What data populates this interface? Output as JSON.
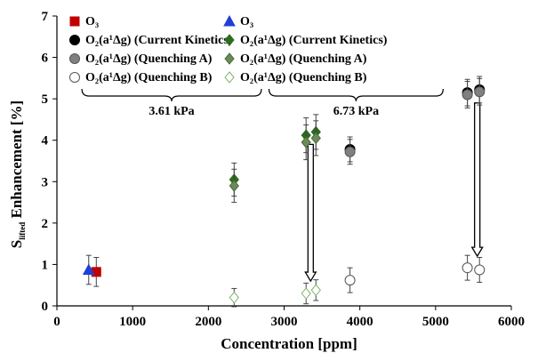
{
  "chart_data": {
    "type": "scatter",
    "xlabel": "Concentration [ppm]",
    "ylabel": {
      "prefix": "S",
      "sub": "lifted",
      "suffix": " Enhancement [%]"
    },
    "xlim": [
      0,
      6000
    ],
    "ylim": [
      0,
      7
    ],
    "x_ticks": [
      0,
      1000,
      2000,
      3000,
      4000,
      5000,
      6000
    ],
    "y_ticks": [
      0,
      1,
      2,
      3,
      4,
      5,
      6,
      7
    ],
    "grid": false,
    "legend_placement": "top-left, two columns",
    "annotations": [
      {
        "text": "3.61 kPa",
        "bracket_x": [
          330,
          2700
        ]
      },
      {
        "text": "6.73 kPa",
        "bracket_x": [
          2800,
          5100
        ]
      }
    ],
    "arrows": [
      {
        "x": 3350,
        "y_from": 3.9,
        "y_to": 0.6
      },
      {
        "x": 5550,
        "y_from": 4.9,
        "y_to": 1.2
      }
    ],
    "legend_columns": [
      [
        {
          "series": 0,
          "label": "O₃"
        },
        {
          "series": 1,
          "label": "O₂(a¹Δg) (Current Kinetics)"
        },
        {
          "series": 2,
          "label": "O₂(a¹Δg) (Quenching A)"
        },
        {
          "series": 3,
          "label": "O₂(a¹Δg) (Quenching B)"
        }
      ],
      [
        {
          "series": 4,
          "label": "O₃"
        },
        {
          "series": 5,
          "label": "O₂(a¹Δg) (Current Kinetics)"
        },
        {
          "series": 6,
          "label": "O₂(a¹Δg) (Quenching A)"
        },
        {
          "series": 7,
          "label": "O₂(a¹Δg) (Quenching B)"
        }
      ]
    ],
    "series": [
      {
        "marker": "square",
        "fill": "#c00000",
        "stroke": "#c00000",
        "points": [
          {
            "x": 520,
            "y": 0.82,
            "err": 0.35
          }
        ]
      },
      {
        "marker": "circle",
        "fill": "#000000",
        "stroke": "#000000",
        "points": [
          {
            "x": 3870,
            "y": 3.78,
            "err": 0.3
          },
          {
            "x": 5420,
            "y": 5.15,
            "err": 0.32
          },
          {
            "x": 5580,
            "y": 5.22,
            "err": 0.32
          }
        ]
      },
      {
        "marker": "circle",
        "fill": "#808080",
        "stroke": "#555555",
        "points": [
          {
            "x": 3870,
            "y": 3.72,
            "err": 0.3
          },
          {
            "x": 5420,
            "y": 5.1,
            "err": 0.32
          },
          {
            "x": 5580,
            "y": 5.17,
            "err": 0.32
          }
        ]
      },
      {
        "marker": "circle",
        "fill": "#ffffff",
        "stroke": "#555555",
        "points": [
          {
            "x": 3870,
            "y": 0.62,
            "err": 0.3
          },
          {
            "x": 5420,
            "y": 0.92,
            "err": 0.3
          },
          {
            "x": 5580,
            "y": 0.87,
            "err": 0.3
          }
        ]
      },
      {
        "marker": "triangle",
        "fill": "#1f3fd6",
        "stroke": "#1f3fd6",
        "points": [
          {
            "x": 420,
            "y": 0.87,
            "err": 0.35
          }
        ]
      },
      {
        "marker": "diamond",
        "fill": "#2e6b1f",
        "stroke": "#2e6b1f",
        "points": [
          {
            "x": 2340,
            "y": 3.05,
            "err": 0.4
          },
          {
            "x": 3290,
            "y": 4.12,
            "err": 0.42
          },
          {
            "x": 3420,
            "y": 4.2,
            "err": 0.42
          }
        ]
      },
      {
        "marker": "diamond",
        "fill": "#6b8a5a",
        "stroke": "#4a6a3a",
        "points": [
          {
            "x": 2340,
            "y": 2.9,
            "err": 0.4
          },
          {
            "x": 3290,
            "y": 3.95,
            "err": 0.42
          },
          {
            "x": 3420,
            "y": 4.05,
            "err": 0.42
          }
        ]
      },
      {
        "marker": "diamond",
        "fill": "#ffffff",
        "stroke": "#7fb36a",
        "points": [
          {
            "x": 2340,
            "y": 0.2,
            "err": 0.22
          },
          {
            "x": 3290,
            "y": 0.3,
            "err": 0.25
          },
          {
            "x": 3420,
            "y": 0.38,
            "err": 0.25
          }
        ]
      }
    ]
  }
}
